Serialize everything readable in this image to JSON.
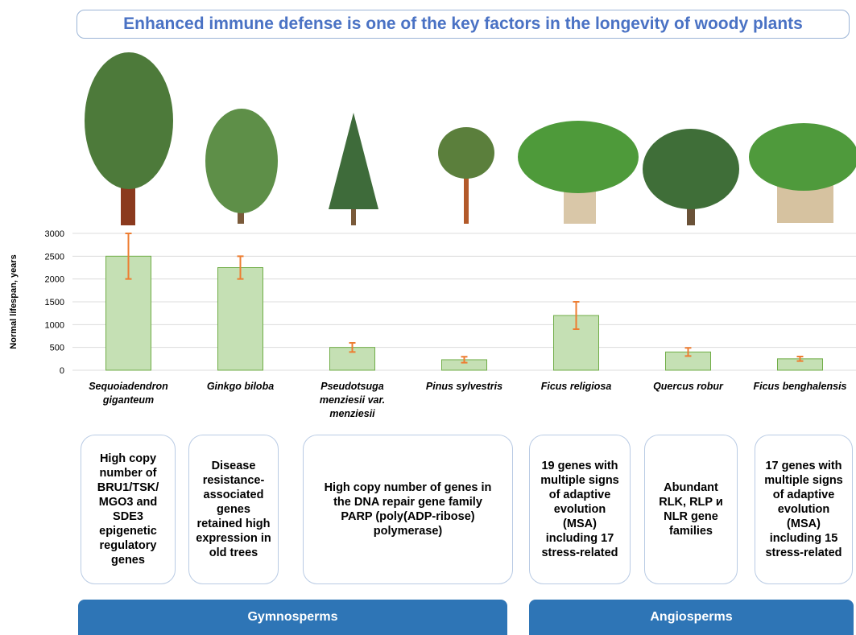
{
  "chart_data": {
    "type": "bar",
    "title": "Enhanced immune defense is one of the key factors in the longevity of woody plants",
    "y_label": "Normal lifespan, years",
    "categories": [
      "Sequoiadendron giganteum",
      "Ginkgo biloba",
      "Pseudotsuga menziesii var. menziesii",
      "Pinus sylvestris",
      "Ficus religiosa",
      "Quercus robur",
      "Ficus benghalensis"
    ],
    "values": [
      2500,
      2250,
      500,
      230,
      1200,
      400,
      250
    ],
    "errors": [
      500,
      250,
      100,
      65,
      300,
      90,
      50
    ],
    "color": "#c5e0b4",
    "edge_color": "#70ad47",
    "error_color": "#ed7d31",
    "ylim": [
      0,
      3000
    ],
    "yticks": [
      0,
      500,
      1000,
      1500,
      2000,
      2500,
      3000
    ],
    "grid": true
  },
  "boxes": [
    "High copy number of BRU1/TSK/ MGO3 and SDE3 epigenetic regulatory genes",
    "Disease resistance-associated genes retained high expression in old trees",
    "High copy number of genes in the DNA repair gene family PARP (poly(ADP-ribose) polymerase)",
    "19 genes with multiple signs of adaptive evolution (MSA) including 17 stress-related",
    "Abundant RLK, RLP и NLR gene families",
    "17 genes with multiple signs of adaptive evolution (MSA) including 15 stress-related"
  ],
  "groups": [
    "Gymnosperms",
    "Angiosperms"
  ]
}
